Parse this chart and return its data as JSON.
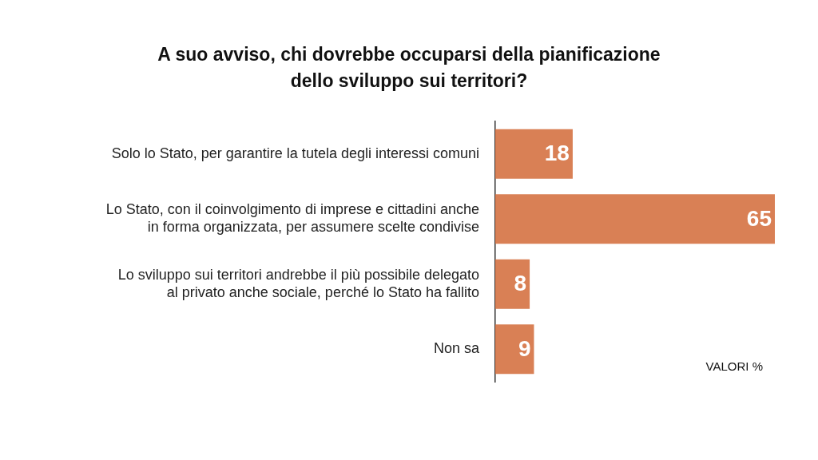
{
  "chart_data": {
    "type": "bar",
    "orientation": "horizontal",
    "title": "A suo avviso, chi dovrebbe occuparsi della pianificazione dello sviluppo sui territori?",
    "categories": [
      "Solo lo Stato, per garantire la tutela degli interessi comuni",
      "Lo Stato, con il coinvolgimento di imprese e cittadini anche in forma organizzata, per assumere scelte condivise",
      "Lo sviluppo sui territori andrebbe il più possibile delegato al privato anche sociale, perché lo Stato ha fallito",
      "Non sa"
    ],
    "values": [
      18,
      65,
      8,
      9
    ],
    "color": "#d98055",
    "data_labels": true,
    "legend": false,
    "annotations": [
      "VALORI %"
    ]
  }
}
